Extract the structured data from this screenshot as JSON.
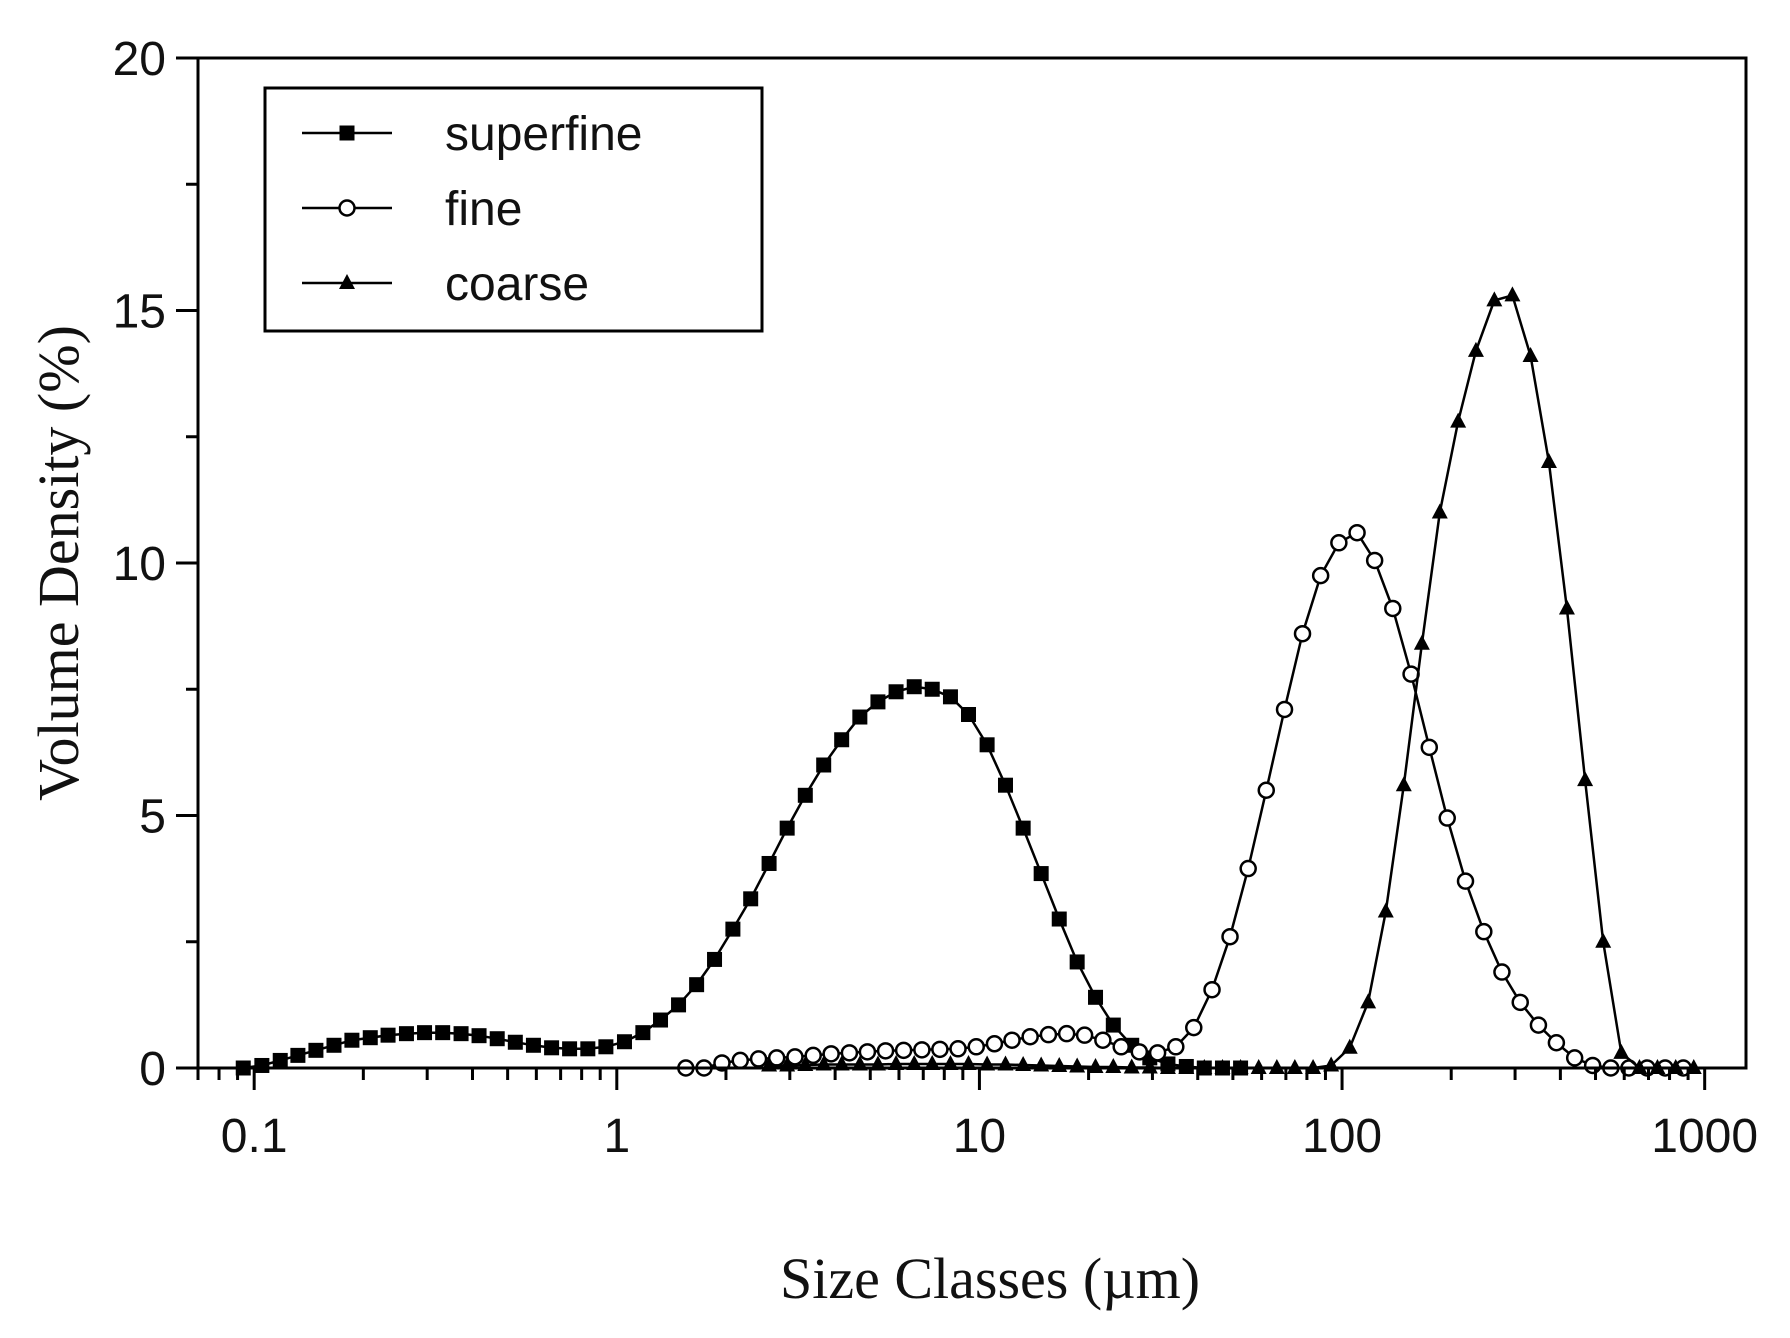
{
  "chart_data": {
    "type": "line",
    "title": "",
    "xlabel": "Size Classes (µm)",
    "ylabel": "Volume Density (%)",
    "x_scale": "log",
    "xlim": [
      0.07,
      1300
    ],
    "ylim": [
      0,
      20
    ],
    "x_ticks": [
      0.1,
      1,
      10,
      100,
      1000
    ],
    "x_tick_labels": [
      "0.1",
      "1",
      "10",
      "100",
      "1000"
    ],
    "y_ticks": [
      0,
      5,
      10,
      15,
      20
    ],
    "y_tick_labels": [
      "0",
      "5",
      "10",
      "15",
      "20"
    ],
    "grid": false,
    "legend": {
      "position": "top-left",
      "entries": [
        "superfine",
        "fine",
        "coarse"
      ]
    },
    "series": [
      {
        "name": "superfine",
        "marker": "filled-square",
        "x": [
          0.0933,
          0.105,
          0.118,
          0.132,
          0.148,
          0.166,
          0.186,
          0.209,
          0.234,
          0.263,
          0.295,
          0.331,
          0.372,
          0.417,
          0.468,
          0.525,
          0.589,
          0.661,
          0.741,
          0.832,
          0.933,
          1.05,
          1.18,
          1.32,
          1.48,
          1.66,
          1.86,
          2.09,
          2.34,
          2.63,
          2.95,
          3.31,
          3.72,
          4.17,
          4.68,
          5.25,
          5.89,
          6.61,
          7.41,
          8.32,
          9.33,
          10.5,
          11.8,
          13.2,
          14.8,
          16.6,
          18.6,
          20.9,
          23.4,
          26.3,
          29.5,
          33.1,
          37.2,
          41.7,
          46.8,
          52.5
        ],
        "y": [
          0.0,
          0.05,
          0.15,
          0.25,
          0.35,
          0.45,
          0.55,
          0.6,
          0.65,
          0.68,
          0.7,
          0.7,
          0.68,
          0.64,
          0.58,
          0.51,
          0.45,
          0.4,
          0.38,
          0.38,
          0.42,
          0.52,
          0.7,
          0.95,
          1.25,
          1.65,
          2.15,
          2.75,
          3.35,
          4.05,
          4.75,
          5.4,
          6.0,
          6.5,
          6.95,
          7.25,
          7.45,
          7.55,
          7.5,
          7.35,
          7.0,
          6.4,
          5.6,
          4.75,
          3.85,
          2.95,
          2.1,
          1.4,
          0.85,
          0.45,
          0.2,
          0.08,
          0.03,
          0.0,
          0.0,
          0.0
        ]
      },
      {
        "name": "fine",
        "marker": "open-circle",
        "x": [
          1.55,
          1.74,
          1.95,
          2.19,
          2.46,
          2.76,
          3.1,
          3.48,
          3.9,
          4.38,
          4.91,
          5.51,
          6.18,
          6.94,
          7.78,
          8.73,
          9.8,
          11.0,
          12.3,
          13.8,
          15.5,
          17.4,
          19.5,
          21.9,
          24.6,
          27.6,
          31.0,
          34.8,
          39.0,
          43.8,
          49.1,
          55.1,
          61.8,
          69.4,
          77.8,
          87.3,
          98.0,
          110,
          123,
          138,
          155,
          174,
          195,
          219,
          246,
          276,
          310,
          348,
          390,
          438,
          491,
          551,
          618,
          694,
          778,
          873
        ],
        "y": [
          0.0,
          0.0,
          0.1,
          0.15,
          0.18,
          0.2,
          0.22,
          0.25,
          0.28,
          0.3,
          0.32,
          0.34,
          0.35,
          0.36,
          0.37,
          0.38,
          0.42,
          0.48,
          0.55,
          0.62,
          0.66,
          0.68,
          0.65,
          0.55,
          0.42,
          0.32,
          0.3,
          0.42,
          0.8,
          1.55,
          2.6,
          3.95,
          5.5,
          7.1,
          8.6,
          9.75,
          10.4,
          10.6,
          10.05,
          9.1,
          7.8,
          6.35,
          4.95,
          3.7,
          2.7,
          1.9,
          1.3,
          0.85,
          0.5,
          0.2,
          0.05,
          0.0,
          0.0,
          0.0,
          0.0,
          0.0
        ]
      },
      {
        "name": "coarse",
        "marker": "filled-triangle",
        "x": [
          2.63,
          2.95,
          3.31,
          3.72,
          4.17,
          4.68,
          5.25,
          5.89,
          6.61,
          7.41,
          8.32,
          9.33,
          10.5,
          11.8,
          13.2,
          14.8,
          16.6,
          18.6,
          20.9,
          23.4,
          26.3,
          29.5,
          33.1,
          37.2,
          41.7,
          46.8,
          52.5,
          58.9,
          66.1,
          74.1,
          83.2,
          93.3,
          105,
          118,
          132,
          148,
          166,
          186,
          209,
          234,
          263,
          295,
          331,
          372,
          417,
          468,
          525,
          589,
          661,
          741,
          832,
          933
        ],
        "y": [
          0.05,
          0.05,
          0.06,
          0.07,
          0.07,
          0.07,
          0.07,
          0.08,
          0.08,
          0.08,
          0.08,
          0.08,
          0.07,
          0.07,
          0.06,
          0.05,
          0.04,
          0.03,
          0.02,
          0.02,
          0.01,
          0.01,
          0.0,
          0.0,
          0.0,
          0.0,
          0.0,
          0.0,
          0.0,
          0.0,
          0.0,
          0.05,
          0.4,
          1.3,
          3.1,
          5.6,
          8.4,
          11.0,
          12.8,
          14.2,
          15.2,
          15.3,
          14.1,
          12.0,
          9.1,
          5.7,
          2.5,
          0.3,
          0.0,
          0.0,
          0.0,
          0.0
        ]
      }
    ]
  }
}
